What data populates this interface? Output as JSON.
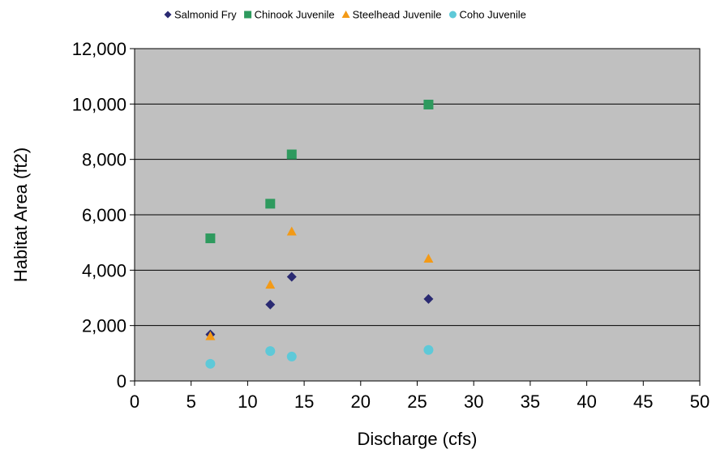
{
  "chart_data": {
    "type": "scatter",
    "title": "",
    "xlabel": "Discharge (cfs)",
    "ylabel": "Habitat Area (ft2)",
    "xlim": [
      0,
      50
    ],
    "ylim": [
      0,
      12000
    ],
    "x_ticks": [
      0,
      5,
      10,
      15,
      20,
      25,
      30,
      35,
      40,
      45,
      50
    ],
    "y_ticks": [
      0,
      2000,
      4000,
      6000,
      8000,
      10000,
      12000
    ],
    "x_tick_labels": [
      "0",
      "5",
      "10",
      "15",
      "20",
      "25",
      "30",
      "35",
      "40",
      "45",
      "50"
    ],
    "y_tick_labels": [
      "0",
      "2,000",
      "4,000",
      "6,000",
      "8,000",
      "10,000",
      "12,000"
    ],
    "grid": "horizontal",
    "plot_background": "#c0c0c0",
    "legend_position": "top",
    "series": [
      {
        "name": "Salmonid Fry",
        "marker": "diamond",
        "color": "#2a2a72",
        "points": [
          [
            6.7,
            1680
          ],
          [
            12,
            2760
          ],
          [
            13.9,
            3760
          ],
          [
            26,
            2960
          ]
        ]
      },
      {
        "name": "Chinook Juvenile",
        "marker": "square",
        "color": "#2e9a5e",
        "points": [
          [
            6.7,
            5150
          ],
          [
            12,
            6400
          ],
          [
            13.9,
            8180
          ],
          [
            26,
            9980
          ]
        ]
      },
      {
        "name": "Steelhead Juvenile",
        "marker": "triangle",
        "color": "#f39a16",
        "points": [
          [
            6.7,
            1620
          ],
          [
            12,
            3480
          ],
          [
            13.9,
            5400
          ],
          [
            26,
            4420
          ]
        ]
      },
      {
        "name": "Coho Juvenile",
        "marker": "circle",
        "color": "#5ec9d8",
        "points": [
          [
            6.7,
            620
          ],
          [
            12,
            1080
          ],
          [
            13.9,
            880
          ],
          [
            26,
            1120
          ]
        ]
      }
    ]
  }
}
